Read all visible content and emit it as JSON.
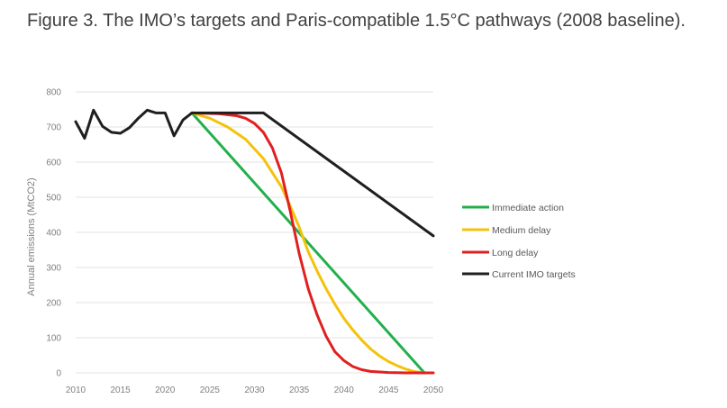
{
  "caption": "Figure 3. The IMO’s targets and Paris-compatible 1.5°C pathways (2008 baseline).",
  "chart_data": {
    "type": "line",
    "title": "",
    "xlabel": "",
    "ylabel": "Annual emissions (MtCO2)",
    "xlim": [
      2010,
      2050
    ],
    "ylim": [
      0,
      800
    ],
    "x_ticks": [
      2010,
      2015,
      2020,
      2025,
      2030,
      2035,
      2040,
      2045,
      2050
    ],
    "y_ticks": [
      0,
      100,
      200,
      300,
      400,
      500,
      600,
      700,
      800
    ],
    "grid": true,
    "legend_position": "right",
    "series": [
      {
        "name": "Immediate action",
        "color": "#22b04b",
        "points": [
          [
            2023,
            740
          ],
          [
            2049,
            0
          ]
        ]
      },
      {
        "name": "Medium delay",
        "color": "#f5c20a",
        "points": [
          [
            2023,
            740
          ],
          [
            2025,
            725
          ],
          [
            2027,
            700
          ],
          [
            2029,
            665
          ],
          [
            2031,
            610
          ],
          [
            2033,
            530
          ],
          [
            2034,
            475
          ],
          [
            2035,
            415
          ],
          [
            2036,
            345
          ],
          [
            2037,
            290
          ],
          [
            2038,
            240
          ],
          [
            2039,
            195
          ],
          [
            2040,
            155
          ],
          [
            2041,
            122
          ],
          [
            2042,
            93
          ],
          [
            2043,
            68
          ],
          [
            2044,
            48
          ],
          [
            2045,
            32
          ],
          [
            2046,
            20
          ],
          [
            2047,
            10
          ],
          [
            2048,
            3
          ],
          [
            2049,
            0
          ]
        ]
      },
      {
        "name": "Long delay",
        "color": "#e02020",
        "points": [
          [
            2023,
            740
          ],
          [
            2026,
            738
          ],
          [
            2028,
            732
          ],
          [
            2029,
            725
          ],
          [
            2030,
            710
          ],
          [
            2031,
            685
          ],
          [
            2032,
            640
          ],
          [
            2033,
            570
          ],
          [
            2034,
            460
          ],
          [
            2035,
            340
          ],
          [
            2036,
            240
          ],
          [
            2037,
            165
          ],
          [
            2038,
            105
          ],
          [
            2039,
            60
          ],
          [
            2040,
            35
          ],
          [
            2041,
            18
          ],
          [
            2042,
            9
          ],
          [
            2043,
            4
          ],
          [
            2045,
            1
          ],
          [
            2047,
            0
          ],
          [
            2050,
            0
          ]
        ]
      },
      {
        "name": "Current IMO targets",
        "color": "#1f1f1f",
        "points": [
          [
            2010,
            715
          ],
          [
            2011,
            668
          ],
          [
            2012,
            748
          ],
          [
            2013,
            702
          ],
          [
            2014,
            685
          ],
          [
            2015,
            682
          ],
          [
            2016,
            698
          ],
          [
            2017,
            725
          ],
          [
            2018,
            748
          ],
          [
            2019,
            740
          ],
          [
            2020,
            740
          ],
          [
            2021,
            675
          ],
          [
            2022,
            720
          ],
          [
            2023,
            740
          ],
          [
            2031,
            740
          ],
          [
            2050,
            390
          ]
        ]
      }
    ]
  }
}
